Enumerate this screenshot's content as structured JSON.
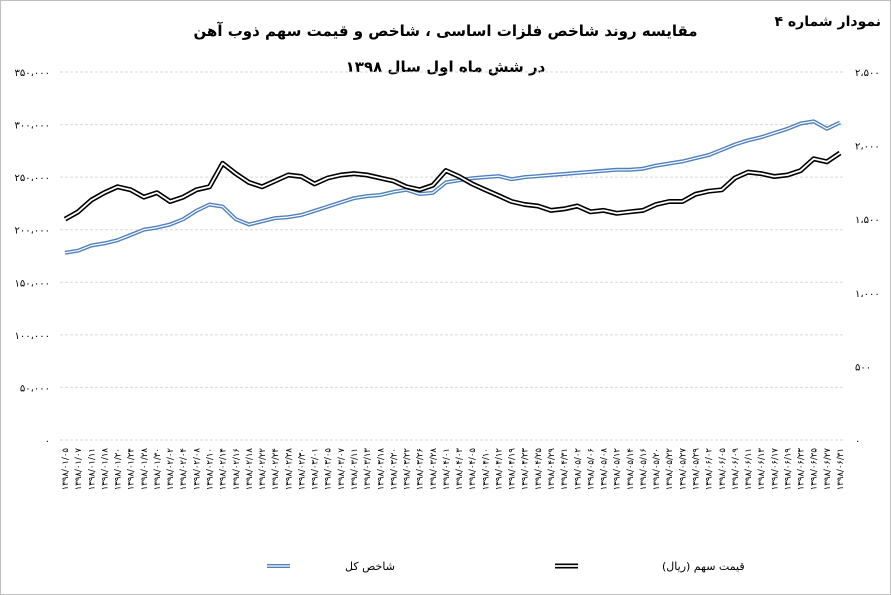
{
  "chart_data": {
    "type": "line",
    "title": "مقایسه روند شاخص فلزات اساسی ، شاخص و قیمت سهم ذوب آهن",
    "subtitle": "در شش ماه اول سال ۱۳۹۸",
    "chart_number": "نمودار شماره ۴",
    "y_left": {
      "min": 0,
      "max": 350000,
      "step": 50000,
      "ticks": [
        "۰",
        "۵۰،۰۰۰",
        "۱۰۰،۰۰۰",
        "۱۵۰،۰۰۰",
        "۲۰۰،۰۰۰",
        "۲۵۰،۰۰۰",
        "۳۰۰،۰۰۰",
        "۳۵۰،۰۰۰"
      ]
    },
    "y_right": {
      "min": 0,
      "max": 2500,
      "step": 500,
      "ticks": [
        "۰",
        "۵۰۰",
        "۱،۰۰۰",
        "۱،۵۰۰",
        "۲،۰۰۰",
        "۲،۵۰۰"
      ]
    },
    "categories": [
      "۱۳۹۸/۰۱/۰۵",
      "۱۳۹۸/۰۱/۰۷",
      "۱۳۹۸/۰۱/۱۱",
      "۱۳۹۸/۰۱/۱۸",
      "۱۳۹۸/۰۱/۲۰",
      "۱۳۹۸/۰۱/۲۴",
      "۱۳۹۸/۰۱/۲۸",
      "۱۳۹۸/۰۱/۳۰",
      "۱۳۹۸/۰۲/۰۲",
      "۱۳۹۸/۰۲/۰۴",
      "۱۳۹۸/۰۲/۰۸",
      "۱۳۹۸/۰۲/۱۰",
      "۱۳۹۸/۰۲/۱۴",
      "۱۳۹۸/۰۲/۱۶",
      "۱۳۹۸/۰۲/۱۸",
      "۱۳۹۸/۰۲/۲۲",
      "۱۳۹۸/۰۲/۲۴",
      "۱۳۹۸/۰۲/۲۸",
      "۱۳۹۸/۰۲/۳۰",
      "۱۳۹۸/۰۳/۰۱",
      "۱۳۹۸/۰۳/۰۵",
      "۱۳۹۸/۰۳/۰۷",
      "۱۳۹۸/۰۳/۱۱",
      "۱۳۹۸/۰۳/۱۳",
      "۱۳۹۸/۰۳/۱۸",
      "۱۳۹۸/۰۳/۲۰",
      "۱۳۹۸/۰۳/۲۲",
      "۱۳۹۸/۰۳/۲۶",
      "۱۳۹۸/۰۳/۲۸",
      "۱۳۹۸/۰۴/۰۱",
      "۱۳۹۸/۰۴/۰۳",
      "۱۳۹۸/۰۴/۰۵",
      "۱۳۹۸/۰۴/۱۰",
      "۱۳۹۸/۰۴/۱۲",
      "۱۳۹۸/۰۴/۱۹",
      "۱۳۹۸/۰۴/۲۳",
      "۱۳۹۸/۰۴/۲۵",
      "۱۳۹۸/۰۴/۲۹",
      "۱۳۹۸/۰۴/۳۱",
      "۱۳۹۸/۰۵/۰۲",
      "۱۳۹۸/۰۵/۰۶",
      "۱۳۹۸/۰۵/۰۸",
      "۱۳۹۸/۰۵/۱۲",
      "۱۳۹۸/۰۵/۱۴",
      "۱۳۹۸/۰۵/۱۶",
      "۱۳۹۸/۰۵/۲۰",
      "۱۳۹۸/۰۵/۲۲",
      "۱۳۹۸/۰۵/۲۷",
      "۱۳۹۸/۰۵/۲۹",
      "۱۳۹۸/۰۶/۰۲",
      "۱۳۹۸/۰۶/۰۵",
      "۱۳۹۸/۰۶/۰۹",
      "۱۳۹۸/۰۶/۱۱",
      "۱۳۹۸/۰۶/۱۳",
      "۱۳۹۸/۰۶/۱۷",
      "۱۳۹۸/۰۶/۱۹",
      "۱۳۹۸/۰۶/۲۳",
      "۱۳۹۸/۰۶/۲۵",
      "۱۳۹۸/۰۶/۲۷",
      "۱۳۹۸/۰۶/۳۱"
    ],
    "series": [
      {
        "name": "شاخص کل",
        "axis": "left",
        "color": "#4f81bd",
        "values": [
          178000,
          180000,
          185000,
          187000,
          190000,
          195000,
          200000,
          202000,
          205000,
          210000,
          218000,
          224000,
          222000,
          210000,
          205000,
          208000,
          211000,
          212000,
          214000,
          218000,
          222000,
          226000,
          230000,
          232000,
          233000,
          236000,
          238000,
          234000,
          235000,
          245000,
          247000,
          249000,
          250000,
          251000,
          248000,
          250000,
          251000,
          252000,
          253000,
          254000,
          255000,
          256000,
          257000,
          257000,
          258000,
          261000,
          263000,
          265000,
          268000,
          271000,
          276000,
          281000,
          285000,
          288000,
          292000,
          296000,
          301000,
          303000,
          296000,
          302000
        ]
      },
      {
        "name": "قیمت سهم (ریال)",
        "axis": "right",
        "color": "#000000",
        "values": [
          1500,
          1550,
          1630,
          1680,
          1720,
          1700,
          1650,
          1680,
          1620,
          1650,
          1700,
          1720,
          1880,
          1810,
          1750,
          1720,
          1760,
          1800,
          1790,
          1740,
          1780,
          1800,
          1810,
          1800,
          1780,
          1760,
          1720,
          1700,
          1730,
          1830,
          1790,
          1740,
          1700,
          1660,
          1620,
          1600,
          1590,
          1560,
          1570,
          1590,
          1550,
          1560,
          1540,
          1550,
          1560,
          1600,
          1620,
          1620,
          1670,
          1690,
          1700,
          1780,
          1820,
          1810,
          1790,
          1800,
          1830,
          1910,
          1890,
          1950
        ]
      }
    ]
  },
  "legend": {
    "items": [
      {
        "label": "شاخص کل",
        "color": "#4f81bd"
      },
      {
        "label": "قیمت سهم (ریال)",
        "color": "#000000"
      }
    ]
  }
}
